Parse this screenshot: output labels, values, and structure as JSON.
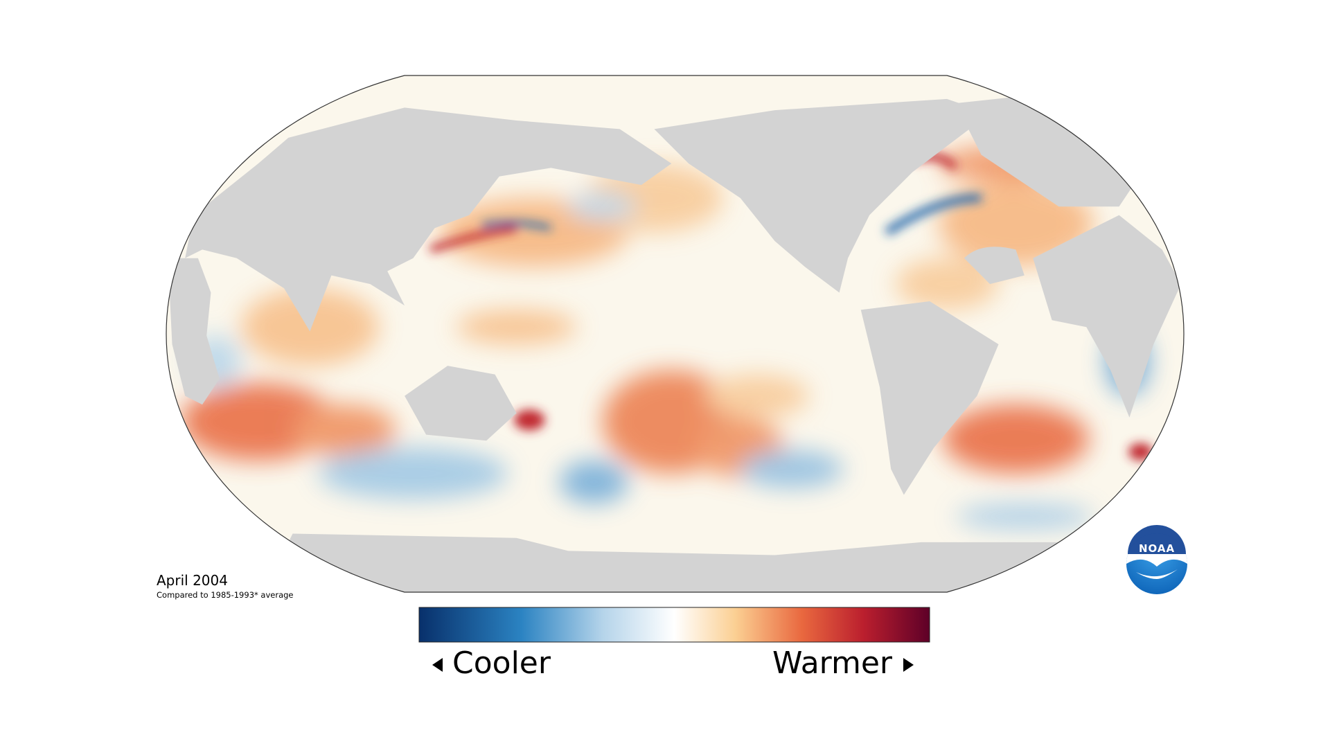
{
  "map": {
    "date": "April 2004",
    "baseline_note": "Compared to 1985-1993* average"
  },
  "legend": {
    "low_label": "Cooler",
    "high_label": "Warmer"
  },
  "logo": {
    "text": "NOAA"
  }
}
